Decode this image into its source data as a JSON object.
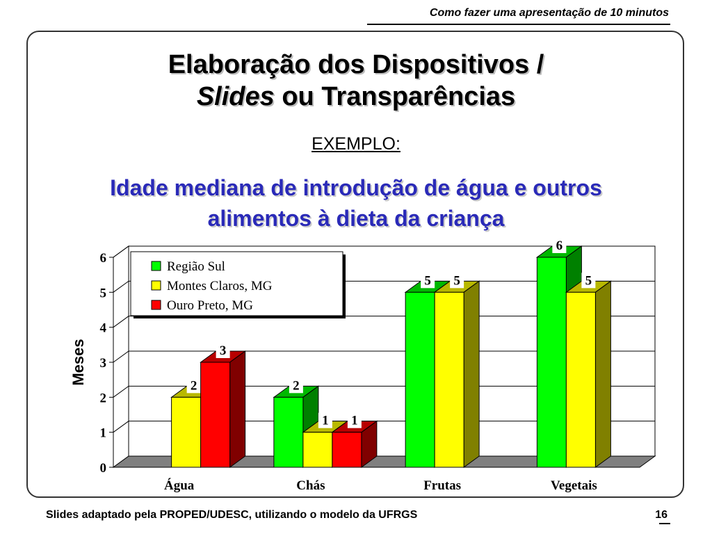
{
  "header": {
    "note": "Como fazer uma apresentação de 10 minutos"
  },
  "slide": {
    "title_line1": "Elaboração dos Dispositivos /",
    "title_line2_italic": "Slides",
    "title_line2_rest": " ou Transparências",
    "subtitle": "EXEMPLO:",
    "chart_title_line1": "Idade mediana de introdução de água e outros",
    "chart_title_line2": "alimentos à dieta da criança"
  },
  "chart_data": {
    "type": "bar",
    "title": "Idade mediana de introdução de água e outros alimentos à dieta da criança",
    "categories": [
      "Água",
      "Chás",
      "Frutas",
      "Vegetais"
    ],
    "series": [
      {
        "name": "Região Sul",
        "color": "#00ff00",
        "values": [
          null,
          2,
          5,
          6
        ]
      },
      {
        "name": "Montes Claros, MG",
        "color": "#ffff00",
        "values": [
          2,
          1,
          5,
          5
        ]
      },
      {
        "name": "Ouro Preto, MG",
        "color": "#ff0000",
        "values": [
          3,
          1,
          null,
          null
        ]
      }
    ],
    "ylabel": "Meses",
    "ylim": [
      0,
      6
    ],
    "yticks": [
      0,
      1,
      2,
      3,
      4,
      5,
      6
    ],
    "grid": true,
    "legend": "top-left"
  },
  "footer": {
    "credit": "Slides adaptado pela PROPED/UDESC, utilizando o modelo da UFRGS",
    "page_number": "16"
  }
}
